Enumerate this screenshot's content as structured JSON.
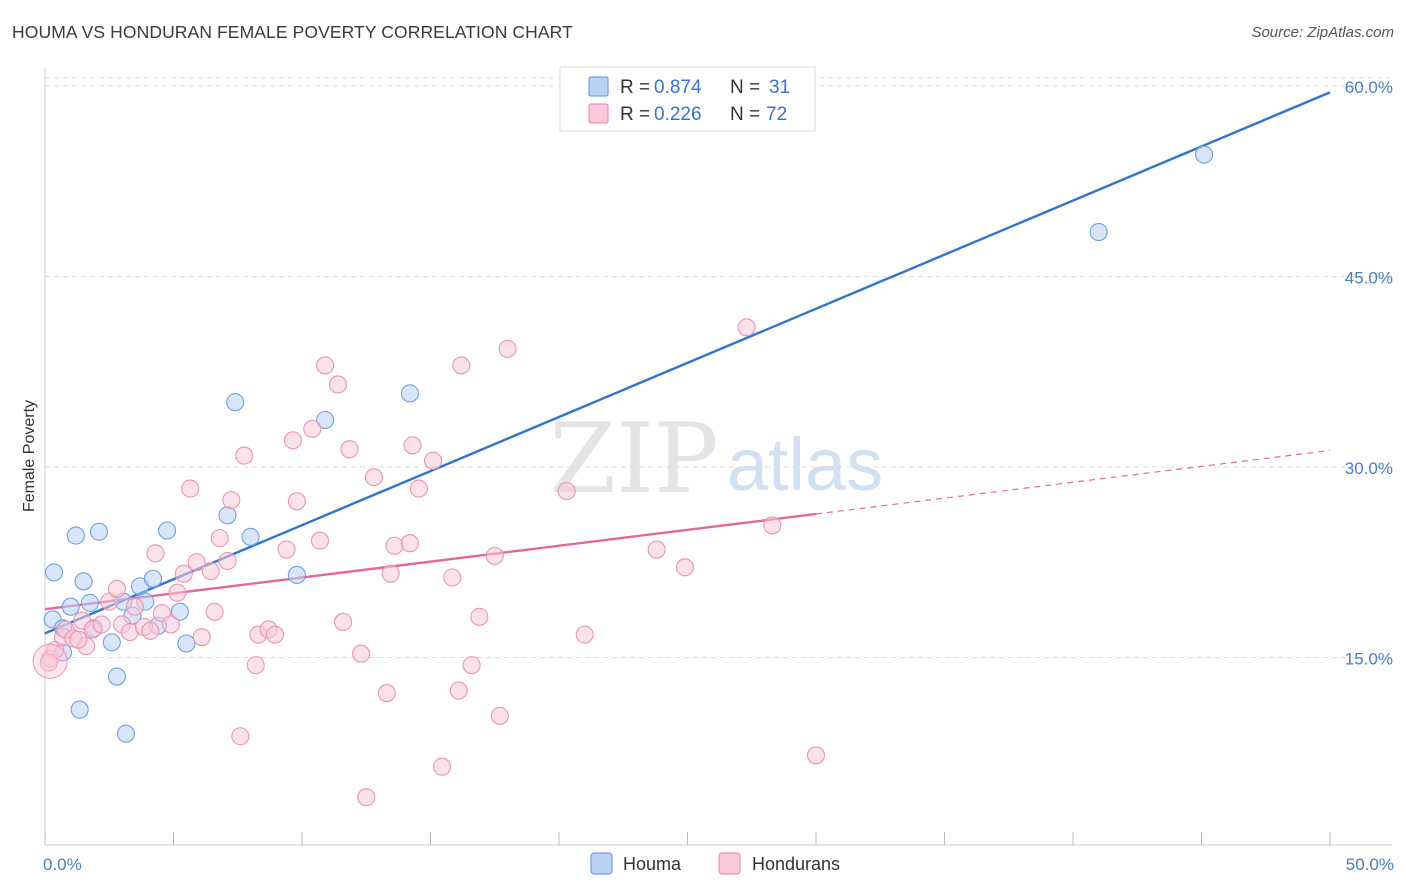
{
  "title": "HOUMA VS HONDURAN FEMALE POVERTY CORRELATION CHART",
  "source": "Source: ZipAtlas.com",
  "watermark": {
    "zip": "ZIP",
    "atlas": "atlas"
  },
  "colors": {
    "houma": "#6fa0e6",
    "houma_fill": "#b9d1f5",
    "houma_line": "#2e74d0",
    "hondurans": "#ee93b2",
    "hondurans_fill": "#f8c9d8",
    "hondurans_line": "#e4679a",
    "grid": "#dddddd",
    "tick_text": "#4a7cc9"
  },
  "legend": {
    "rows": [
      {
        "r_label": "R = ",
        "r_value": "0.874",
        "n_label": "N = ",
        "n_value": "31"
      },
      {
        "r_label": "R = ",
        "r_value": "0.226",
        "n_label": "N = ",
        "n_value": "72"
      }
    ]
  },
  "chart_data": {
    "type": "scatter",
    "title": "HOUMA VS HONDURAN FEMALE POVERTY CORRELATION CHART",
    "xlabel": "",
    "ylabel": "Female Poverty",
    "xlim": [
      0,
      50
    ],
    "ylim": [
      0,
      60
    ],
    "x_tick_labels": [
      "0.0%",
      "50.0%"
    ],
    "y_ticks": [
      15,
      30,
      45,
      60
    ],
    "y_tick_labels": [
      "15.0%",
      "30.0%",
      "45.0%",
      "60.0%"
    ],
    "grid": true,
    "legend_position": "top-center",
    "series": [
      {
        "name": "Houma",
        "R": 0.874,
        "N": 31,
        "trend": {
          "x": [
            0,
            50
          ],
          "y": [
            16.9,
            59.5
          ],
          "style": "solid"
        },
        "points": [
          [
            0.3,
            18.0
          ],
          [
            0.35,
            21.7
          ],
          [
            0.7,
            17.3
          ],
          [
            0.7,
            15.4
          ],
          [
            1.0,
            19.0
          ],
          [
            1.2,
            24.6
          ],
          [
            1.35,
            10.9
          ],
          [
            1.5,
            21.0
          ],
          [
            1.75,
            19.3
          ],
          [
            1.9,
            17.3
          ],
          [
            2.1,
            24.9
          ],
          [
            2.6,
            16.2
          ],
          [
            2.8,
            13.5
          ],
          [
            3.05,
            19.4
          ],
          [
            3.15,
            9.0
          ],
          [
            3.4,
            18.3
          ],
          [
            3.7,
            20.6
          ],
          [
            3.9,
            19.4
          ],
          [
            4.2,
            21.2
          ],
          [
            4.4,
            17.5
          ],
          [
            4.75,
            25.0
          ],
          [
            5.25,
            18.6
          ],
          [
            5.5,
            16.1
          ],
          [
            7.1,
            26.2
          ],
          [
            7.4,
            35.1
          ],
          [
            8.0,
            24.5
          ],
          [
            9.8,
            21.5
          ],
          [
            10.9,
            33.7
          ],
          [
            14.2,
            35.8
          ],
          [
            41.0,
            48.5
          ],
          [
            45.1,
            54.6
          ]
        ]
      },
      {
        "name": "Hondurans",
        "R": 0.226,
        "N": 72,
        "trend": {
          "x": [
            0,
            30
          ],
          "y": [
            18.8,
            26.3
          ],
          "style": "solid",
          "extended_dashed_to": [
            50,
            31.3
          ]
        },
        "points": [
          [
            0.2,
            14.9
          ],
          [
            0.4,
            15.6
          ],
          [
            0.7,
            16.6
          ],
          [
            0.8,
            17.2
          ],
          [
            1.1,
            16.5
          ],
          [
            1.45,
            17.9
          ],
          [
            1.6,
            15.9
          ],
          [
            1.85,
            17.2
          ],
          [
            2.2,
            17.6
          ],
          [
            2.5,
            19.4
          ],
          [
            2.8,
            20.4
          ],
          [
            3.0,
            17.6
          ],
          [
            3.3,
            17.0
          ],
          [
            3.5,
            19.0
          ],
          [
            3.85,
            17.4
          ],
          [
            4.1,
            17.1
          ],
          [
            4.3,
            23.2
          ],
          [
            4.55,
            18.5
          ],
          [
            4.9,
            17.6
          ],
          [
            5.15,
            20.1
          ],
          [
            5.4,
            21.6
          ],
          [
            5.65,
            28.3
          ],
          [
            5.9,
            22.5
          ],
          [
            6.1,
            16.6
          ],
          [
            6.45,
            21.8
          ],
          [
            6.6,
            18.6
          ],
          [
            6.8,
            24.4
          ],
          [
            7.1,
            22.6
          ],
          [
            7.25,
            27.4
          ],
          [
            7.6,
            8.8
          ],
          [
            7.75,
            30.9
          ],
          [
            8.2,
            14.4
          ],
          [
            8.3,
            16.8
          ],
          [
            8.7,
            17.2
          ],
          [
            8.95,
            16.8
          ],
          [
            9.4,
            23.5
          ],
          [
            9.65,
            32.1
          ],
          [
            9.8,
            27.3
          ],
          [
            10.4,
            33.0
          ],
          [
            10.7,
            24.2
          ],
          [
            10.9,
            38.0
          ],
          [
            11.4,
            36.5
          ],
          [
            11.6,
            17.8
          ],
          [
            11.85,
            31.4
          ],
          [
            12.3,
            15.3
          ],
          [
            12.5,
            4.0
          ],
          [
            12.8,
            29.2
          ],
          [
            13.3,
            12.2
          ],
          [
            13.45,
            21.6
          ],
          [
            13.6,
            23.8
          ],
          [
            14.2,
            24.0
          ],
          [
            14.3,
            31.7
          ],
          [
            14.55,
            28.3
          ],
          [
            15.1,
            30.5
          ],
          [
            15.45,
            6.4
          ],
          [
            15.85,
            21.3
          ],
          [
            16.1,
            12.4
          ],
          [
            16.2,
            38.0
          ],
          [
            16.6,
            14.4
          ],
          [
            16.9,
            18.2
          ],
          [
            17.5,
            23.0
          ],
          [
            17.7,
            10.4
          ],
          [
            18.0,
            39.3
          ],
          [
            20.3,
            28.1
          ],
          [
            21.0,
            16.8
          ],
          [
            23.8,
            23.5
          ],
          [
            24.9,
            22.1
          ],
          [
            27.3,
            41.0
          ],
          [
            28.3,
            25.4
          ],
          [
            30.0,
            7.3
          ],
          [
            0.15,
            14.6
          ],
          [
            1.3,
            16.4
          ]
        ]
      }
    ]
  },
  "bottom_legend": [
    {
      "label": "Houma"
    },
    {
      "label": "Hondurans"
    }
  ]
}
